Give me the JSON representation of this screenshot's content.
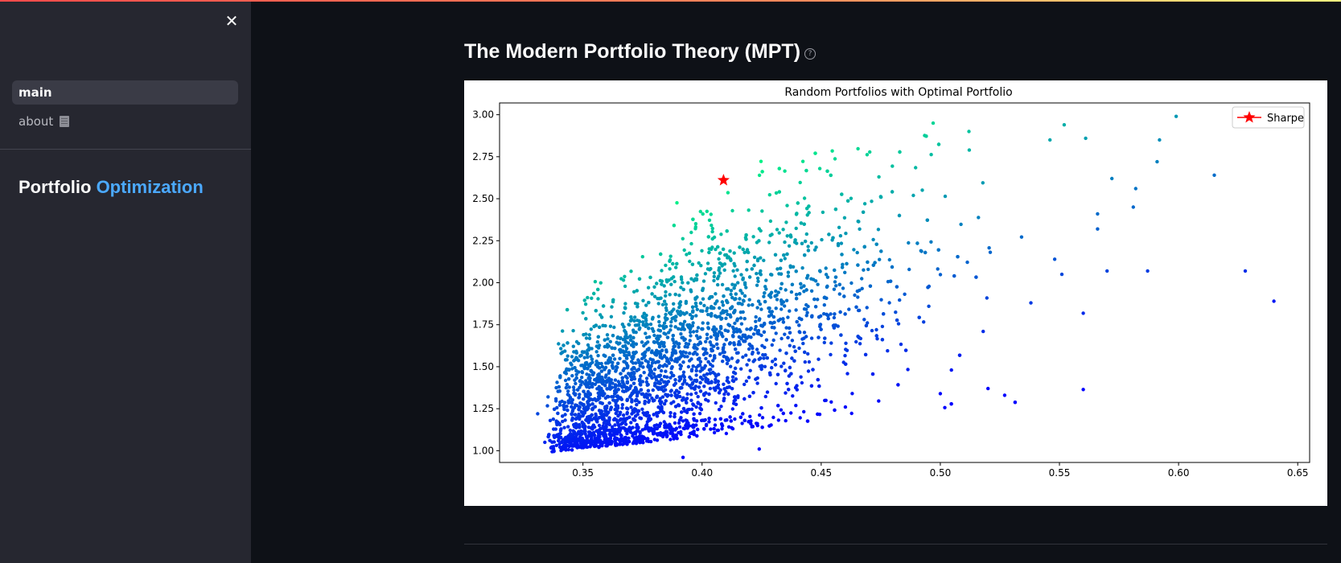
{
  "sidebar": {
    "close_label": "✕",
    "items": [
      {
        "label": "main",
        "active": true
      },
      {
        "label": "about",
        "icon": "book-icon",
        "active": false
      }
    ],
    "brand": {
      "word1": "Portfolio",
      "word2": "Optimization",
      "accent_color": "#4ba9ff"
    }
  },
  "main": {
    "title": "The Modern Portfolio Theory (MPT)",
    "help_icon": "help-circle-icon"
  },
  "chart_data": {
    "type": "scatter",
    "title": "Random Portfolios with Optimal Portfolio",
    "xlabel": "",
    "ylabel": "",
    "xlim": [
      0.315,
      0.655
    ],
    "ylim": [
      0.93,
      3.07
    ],
    "x_ticks": [
      "0.35",
      "0.40",
      "0.45",
      "0.50",
      "0.55",
      "0.60",
      "0.65"
    ],
    "y_ticks": [
      "1.00",
      "1.25",
      "1.50",
      "1.75",
      "2.00",
      "2.25",
      "2.50",
      "2.75",
      "3.00"
    ],
    "colormap": "winter",
    "color_low": "#0000ff",
    "color_high": "#00ff80",
    "point_count_approx": 5000,
    "outlier_points": [
      {
        "x": 0.599,
        "y": 2.99
      },
      {
        "x": 0.615,
        "y": 2.64
      },
      {
        "x": 0.628,
        "y": 2.07
      },
      {
        "x": 0.64,
        "y": 1.89
      },
      {
        "x": 0.587,
        "y": 2.07
      },
      {
        "x": 0.57,
        "y": 2.07
      },
      {
        "x": 0.552,
        "y": 2.94
      },
      {
        "x": 0.592,
        "y": 2.85
      },
      {
        "x": 0.591,
        "y": 2.72
      },
      {
        "x": 0.582,
        "y": 2.56
      },
      {
        "x": 0.581,
        "y": 2.45
      },
      {
        "x": 0.566,
        "y": 2.41
      },
      {
        "x": 0.566,
        "y": 2.32
      },
      {
        "x": 0.572,
        "y": 2.62
      },
      {
        "x": 0.561,
        "y": 2.86
      },
      {
        "x": 0.546,
        "y": 2.85
      },
      {
        "x": 0.548,
        "y": 2.14
      },
      {
        "x": 0.551,
        "y": 2.05
      },
      {
        "x": 0.538,
        "y": 1.88
      },
      {
        "x": 0.527,
        "y": 1.33
      },
      {
        "x": 0.52,
        "y": 1.37
      },
      {
        "x": 0.518,
        "y": 1.71
      },
      {
        "x": 0.5,
        "y": 1.34
      },
      {
        "x": 0.497,
        "y": 2.95
      },
      {
        "x": 0.512,
        "y": 2.9
      },
      {
        "x": 0.392,
        "y": 0.96
      },
      {
        "x": 0.424,
        "y": 1.01
      },
      {
        "x": 0.331,
        "y": 1.22
      },
      {
        "x": 0.334,
        "y": 1.05
      }
    ],
    "series": [
      {
        "name": "Sharpe",
        "marker": "star",
        "color": "#ff0000",
        "points": [
          {
            "x": 0.409,
            "y": 2.61
          }
        ]
      }
    ],
    "legend_position": "top-right"
  }
}
